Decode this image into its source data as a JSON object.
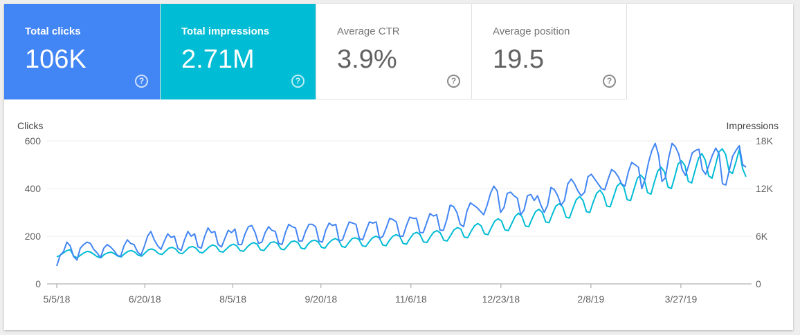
{
  "metrics": [
    {
      "label": "Total clicks",
      "value": "106K",
      "active": true,
      "color": "#4285f4"
    },
    {
      "label": "Total impressions",
      "value": "2.71M",
      "active": true,
      "color": "#00bcd4"
    },
    {
      "label": "Average CTR",
      "value": "3.9%",
      "active": false
    },
    {
      "label": "Average position",
      "value": "19.5",
      "active": false
    }
  ],
  "help_glyph": "?",
  "help_icon": "help-circle-icon",
  "chart_data": {
    "type": "line",
    "y_left_label": "Clicks",
    "y_right_label": "Impressions",
    "y_left_ticks": [
      "0",
      "200",
      "400",
      "600"
    ],
    "y_right_ticks": [
      "0",
      "6K",
      "12K",
      "18K"
    ],
    "y_left_range": [
      0,
      600
    ],
    "y_right_range": [
      0,
      18000
    ],
    "x_start_date": "2018-05-05",
    "x_end_date": "2019-04-30",
    "x_tick_labels": [
      "5/5/18",
      "6/20/18",
      "8/5/18",
      "9/20/18",
      "11/6/18",
      "12/23/18",
      "2/8/19",
      "3/27/19"
    ],
    "x_tick_dates": [
      "2018-05-05",
      "2018-06-20",
      "2018-08-05",
      "2018-09-20",
      "2018-11-06",
      "2018-12-23",
      "2019-02-08",
      "2019-03-27"
    ],
    "grid": true,
    "series": [
      {
        "name": "Clicks",
        "axis": "left",
        "color": "#4285f4",
        "values": [
          75,
          120,
          135,
          175,
          160,
          115,
          100,
          150,
          165,
          175,
          170,
          145,
          130,
          110,
          150,
          165,
          155,
          140,
          120,
          115,
          160,
          185,
          170,
          165,
          135,
          120,
          155,
          200,
          220,
          185,
          160,
          145,
          180,
          210,
          195,
          200,
          150,
          140,
          185,
          220,
          200,
          210,
          155,
          150,
          200,
          235,
          215,
          220,
          165,
          155,
          190,
          225,
          215,
          230,
          165,
          165,
          210,
          240,
          245,
          215,
          170,
          175,
          215,
          240,
          225,
          220,
          170,
          165,
          215,
          250,
          240,
          235,
          180,
          180,
          220,
          250,
          250,
          240,
          180,
          175,
          225,
          255,
          245,
          250,
          180,
          185,
          225,
          260,
          255,
          250,
          190,
          185,
          225,
          260,
          255,
          260,
          190,
          200,
          235,
          275,
          270,
          260,
          200,
          200,
          245,
          280,
          275,
          275,
          215,
          215,
          255,
          295,
          285,
          290,
          225,
          225,
          270,
          330,
          325,
          300,
          250,
          240,
          305,
          340,
          330,
          320,
          305,
          290,
          330,
          380,
          410,
          390,
          300,
          320,
          380,
          385,
          370,
          360,
          290,
          310,
          370,
          375,
          350,
          370,
          330,
          300,
          330,
          405,
          395,
          370,
          330,
          350,
          420,
          440,
          420,
          390,
          370,
          385,
          450,
          460,
          440,
          420,
          400,
          395,
          440,
          480,
          470,
          450,
          420,
          410,
          470,
          510,
          500,
          490,
          400,
          440,
          510,
          560,
          590,
          540,
          430,
          445,
          530,
          590,
          575,
          545,
          480,
          455,
          500,
          550,
          560,
          565,
          480,
          460,
          500,
          540,
          570,
          545,
          420,
          415,
          475,
          535,
          560,
          580,
          500,
          490
        ]
      },
      {
        "name": "Impressions",
        "axis": "right",
        "color": "#00bcd4",
        "values": [
          3400,
          3600,
          3900,
          4200,
          4300,
          3500,
          3300,
          3600,
          3900,
          4100,
          4000,
          3700,
          3400,
          3300,
          3700,
          3900,
          4000,
          3800,
          3500,
          3400,
          3800,
          4100,
          4200,
          4000,
          3600,
          3500,
          3900,
          4300,
          4400,
          4200,
          3800,
          3700,
          4100,
          4500,
          4600,
          4400,
          3900,
          3800,
          4200,
          4600,
          4700,
          4500,
          4000,
          3900,
          4300,
          4700,
          4900,
          4700,
          4100,
          4000,
          4400,
          4800,
          5000,
          4800,
          4200,
          4100,
          4600,
          5000,
          5200,
          5000,
          4300,
          4200,
          4700,
          5200,
          5300,
          5100,
          4400,
          4300,
          4800,
          5300,
          5400,
          5200,
          4500,
          4400,
          5000,
          5400,
          5500,
          5300,
          4600,
          4500,
          5100,
          5500,
          5700,
          5500,
          4700,
          4600,
          5200,
          5700,
          5800,
          5600,
          4800,
          4700,
          5300,
          5800,
          6000,
          5800,
          4900,
          4800,
          5500,
          6000,
          6200,
          6000,
          5100,
          5000,
          5700,
          6300,
          6500,
          6200,
          5300,
          5200,
          5900,
          6500,
          6700,
          6400,
          5500,
          5400,
          6100,
          6800,
          7100,
          6900,
          5900,
          5800,
          6600,
          7300,
          7600,
          7300,
          6300,
          6200,
          7100,
          7900,
          8200,
          7900,
          6800,
          6700,
          7600,
          8500,
          8900,
          8500,
          7300,
          7200,
          8200,
          9100,
          9400,
          9000,
          7800,
          7700,
          8800,
          9800,
          10100,
          9700,
          8400,
          8300,
          9500,
          10600,
          11000,
          10500,
          9100,
          9000,
          10300,
          11400,
          11800,
          11200,
          9800,
          9700,
          11000,
          12300,
          12700,
          12200,
          10600,
          10500,
          11900,
          13300,
          13700,
          13200,
          11500,
          11300,
          12800,
          14200,
          14700,
          14100,
          12200,
          12000,
          13500,
          15100,
          15500,
          14900,
          12900,
          12700,
          14300,
          15800,
          16400,
          15600,
          13600,
          13300,
          14900,
          16600,
          17000,
          16300,
          14200,
          13900,
          15300,
          16900,
          14500,
          13500
        ]
      }
    ]
  }
}
